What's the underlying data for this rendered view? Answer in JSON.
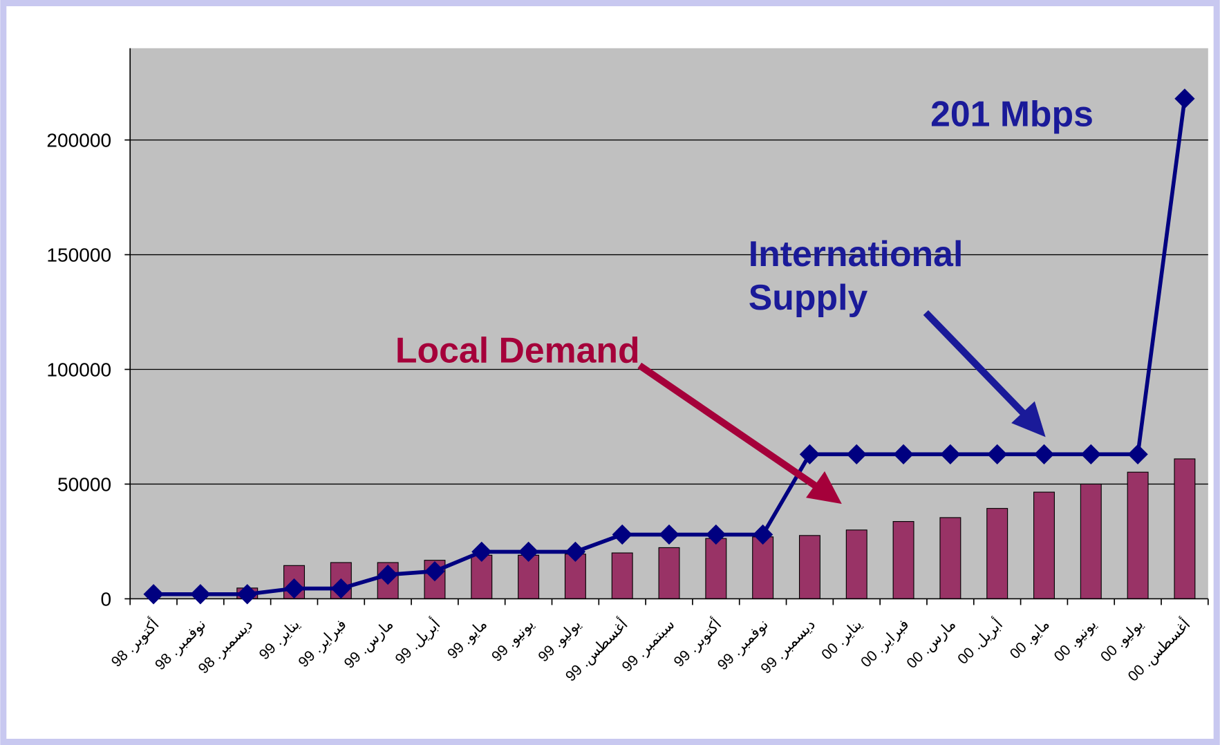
{
  "chart_data": {
    "type": "bar-line",
    "categories": [
      "أكتوبر. 98",
      "نوفمبر. 98",
      "ديسمبر. 98",
      "يناير. 99",
      "فبراير. 99",
      "مارس. 99",
      "أبريل. 99",
      "مايو. 99",
      "يونيو. 99",
      "يوليو. 99",
      "أغسطس. 99",
      "سبتمبر. 99",
      "أكتوبر. 99",
      "نوفمبر. 99",
      "ديسمبر. 99",
      "يناير. 00",
      "فبراير. 00",
      "مارس. 00",
      "أبريل. 00",
      "مايو. 00",
      "يونيو. 00",
      "يوليو. 00",
      "أغسطس. 00"
    ],
    "series": [
      {
        "name": "Local Demand",
        "type": "bar",
        "color": "#993366",
        "values": [
          0,
          0,
          4700,
          14500,
          15800,
          15800,
          16800,
          19000,
          19000,
          19500,
          20000,
          22300,
          26300,
          27000,
          27600,
          30000,
          33700,
          35400,
          39400,
          46500,
          50000,
          55200,
          61000
        ]
      },
      {
        "name": "International Supply",
        "type": "line",
        "color": "#000080",
        "values": [
          2000,
          2000,
          2000,
          4500,
          4500,
          10500,
          12000,
          20500,
          20500,
          20500,
          28000,
          28000,
          28000,
          28000,
          63000,
          63000,
          63000,
          63000,
          63000,
          63000,
          63000,
          63000,
          218000
        ]
      }
    ],
    "ylim": [
      0,
      240000
    ],
    "yticks": [
      0,
      50000,
      100000,
      150000,
      200000
    ],
    "grid": true,
    "plot_background": "#c0c0c0",
    "annotations": [
      "201 Mbps",
      "International",
      "Supply",
      "Local Demand"
    ]
  }
}
